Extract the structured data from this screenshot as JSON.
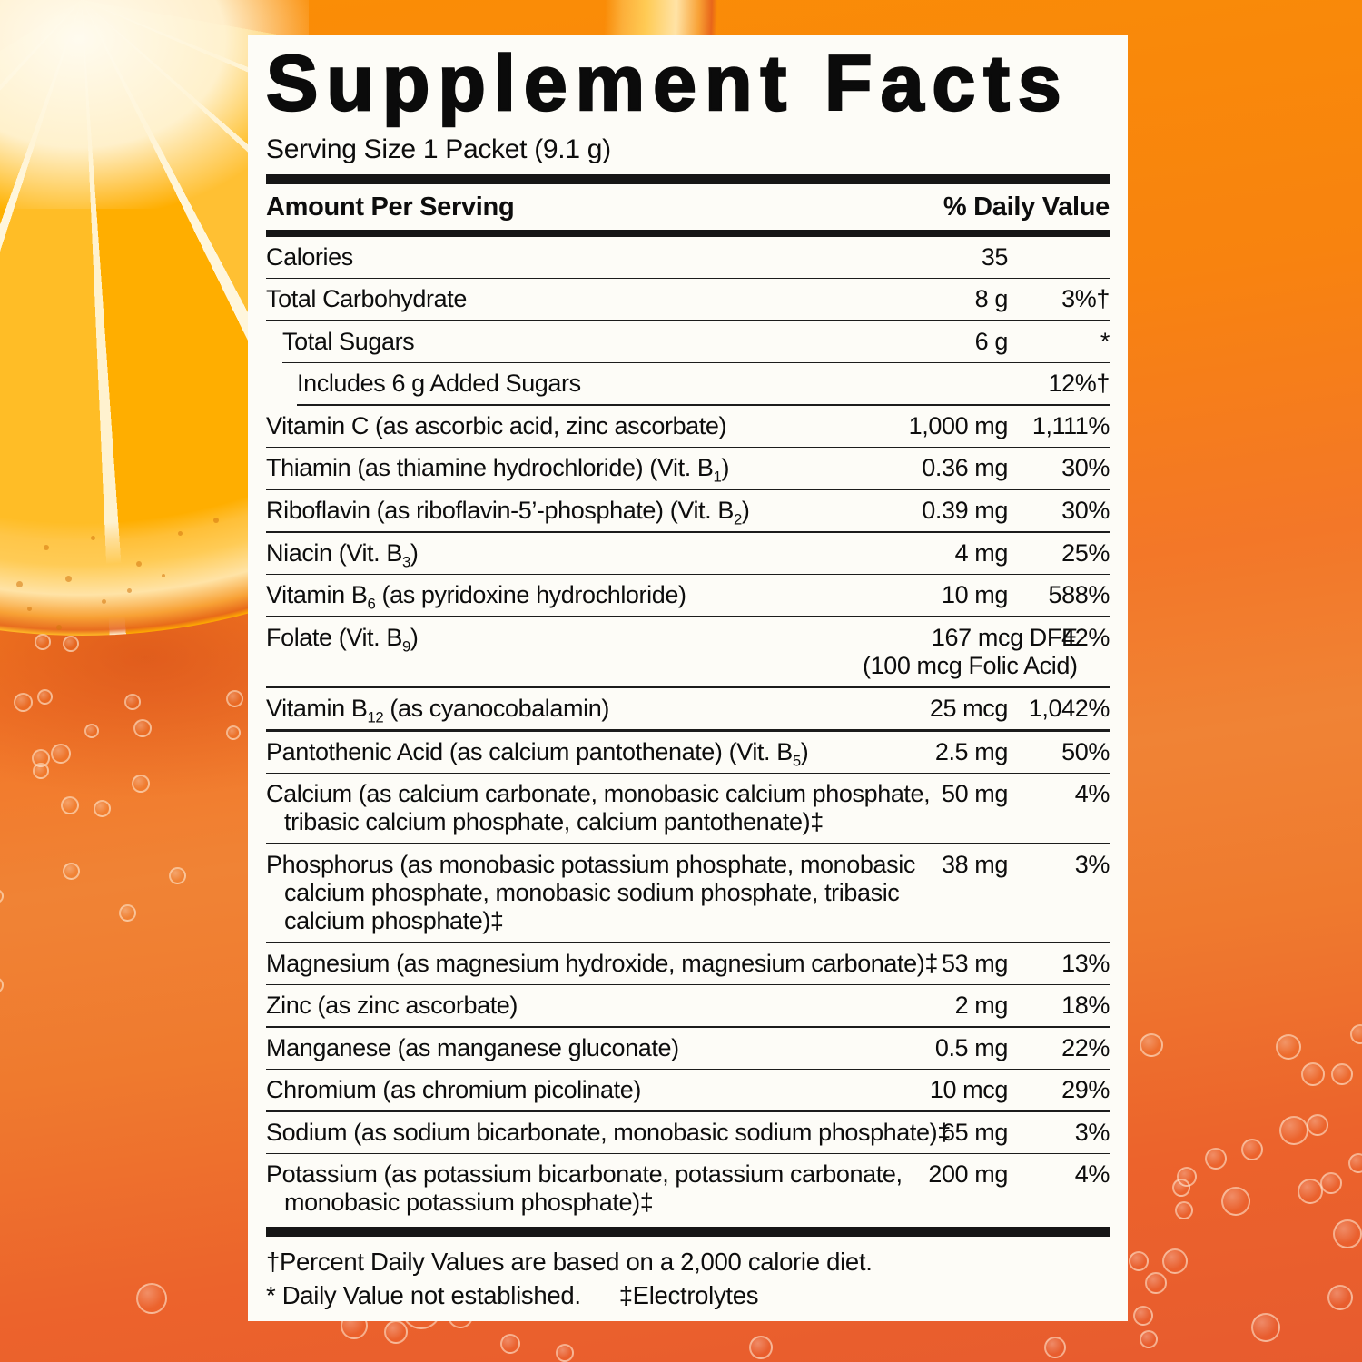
{
  "label": {
    "title": "Supplement Facts",
    "serving_size": "Serving Size 1 Packet (9.1 g)",
    "columns": {
      "amount": "Amount Per Serving",
      "dv": "% Daily Value"
    },
    "rows": [
      {
        "name": [
          {
            "t": "Calories"
          }
        ],
        "indent": 0,
        "amount": [
          "35"
        ],
        "dv": ""
      },
      {
        "name": [
          {
            "t": "Total Carbohydrate"
          }
        ],
        "indent": 0,
        "amount": [
          "8 g"
        ],
        "dv": "3%†"
      },
      {
        "name": [
          {
            "t": "Total Sugars"
          }
        ],
        "indent": 1,
        "amount": [
          "6 g"
        ],
        "dv": "*"
      },
      {
        "name": [
          {
            "t": "Includes 6 g Added Sugars"
          }
        ],
        "indent": 2,
        "amount": [],
        "dv": "12%†"
      },
      {
        "name": [
          {
            "t": "Vitamin C (as ascorbic acid, zinc ascorbate)"
          }
        ],
        "indent": 0,
        "amount": [
          "1,000 mg"
        ],
        "dv": "1,111%"
      },
      {
        "name": [
          {
            "t": "Thiamin (as thiamine hydrochloride) (Vit. B"
          },
          {
            "s": "1"
          },
          {
            "t": ")"
          }
        ],
        "indent": 0,
        "amount": [
          "0.36 mg"
        ],
        "dv": "30%"
      },
      {
        "name": [
          {
            "t": "Riboflavin (as riboflavin-5’-phosphate) (Vit. B"
          },
          {
            "s": "2"
          },
          {
            "t": ")"
          }
        ],
        "indent": 0,
        "amount": [
          "0.39 mg"
        ],
        "dv": "30%"
      },
      {
        "name": [
          {
            "t": "Niacin (Vit. B"
          },
          {
            "s": "3"
          },
          {
            "t": ")"
          }
        ],
        "indent": 0,
        "amount": [
          "4 mg"
        ],
        "dv": "25%"
      },
      {
        "name": [
          {
            "t": "Vitamin B"
          },
          {
            "s": "6"
          },
          {
            "t": " (as pyridoxine hydrochloride)"
          }
        ],
        "indent": 0,
        "amount": [
          "10 mg"
        ],
        "dv": "588%"
      },
      {
        "name": [
          {
            "t": "Folate (Vit. B"
          },
          {
            "s": "9"
          },
          {
            "t": ")"
          }
        ],
        "indent": 0,
        "amount": [
          "167 mcg DFE",
          "(100 mcg Folic Acid)"
        ],
        "dv": "42%",
        "sep": "medium"
      },
      {
        "name": [
          {
            "t": "Vitamin B"
          },
          {
            "s": "12"
          },
          {
            "t": " (as cyanocobalamin)"
          }
        ],
        "indent": 0,
        "amount": [
          "25 mcg"
        ],
        "dv": "1,042%",
        "sep": "medium"
      },
      {
        "name": [
          {
            "t": "Pantothenic Acid (as calcium pantothenate) (Vit. B"
          },
          {
            "s": "5"
          },
          {
            "t": ")"
          }
        ],
        "indent": 0,
        "amount": [
          "2.5 mg"
        ],
        "dv": "50%"
      },
      {
        "name": [
          {
            "t": "Calcium (as calcium carbonate, monobasic calcium phosphate,"
          },
          {
            "br": true
          },
          {
            "t": "tribasic calcium phosphate, calcium pantothenate)‡"
          }
        ],
        "indent": 0,
        "amount": [
          "50 mg"
        ],
        "dv": "4%"
      },
      {
        "name": [
          {
            "t": "Phosphorus (as monobasic potassium phosphate, monobasic"
          },
          {
            "br": true
          },
          {
            "t": "calcium phosphate, monobasic sodium phosphate, tribasic"
          },
          {
            "br": true
          },
          {
            "t": "calcium phosphate)‡"
          }
        ],
        "indent": 0,
        "amount": [
          "38 mg"
        ],
        "dv": "3%"
      },
      {
        "name": [
          {
            "t": "Magnesium (as magnesium hydroxide, magnesium carbonate)‡"
          }
        ],
        "indent": 0,
        "amount": [
          "53 mg"
        ],
        "dv": "13%"
      },
      {
        "name": [
          {
            "t": "Zinc (as zinc ascorbate)"
          }
        ],
        "indent": 0,
        "amount": [
          "2 mg"
        ],
        "dv": "18%"
      },
      {
        "name": [
          {
            "t": "Manganese (as manganese gluconate)"
          }
        ],
        "indent": 0,
        "amount": [
          "0.5 mg"
        ],
        "dv": "22%"
      },
      {
        "name": [
          {
            "t": "Chromium (as chromium picolinate)"
          }
        ],
        "indent": 0,
        "amount": [
          "10 mcg"
        ],
        "dv": "29%"
      },
      {
        "name": [
          {
            "t": "Sodium (as sodium bicarbonate, monobasic sodium phosphate)‡"
          }
        ],
        "indent": 0,
        "amount": [
          "65 mg"
        ],
        "dv": "3%"
      },
      {
        "name": [
          {
            "t": "Potassium (as potassium bicarbonate, potassium carbonate,"
          },
          {
            "br": true
          },
          {
            "t": "monobasic potassium phosphate)‡"
          }
        ],
        "indent": 0,
        "amount": [
          "200 mg"
        ],
        "dv": "4%"
      }
    ],
    "footnotes": {
      "daily_value": "†Percent Daily Values are based on a 2,000 calorie diet.",
      "not_established": "* Daily Value not established.",
      "electrolytes": "‡Electrolytes"
    }
  },
  "colors": {
    "background_top": "#FA8E05",
    "background_bottom": "#E75B2E",
    "panel": "#FDFCF7",
    "text": "#0D0D0D",
    "slice_orange": "#FFB200",
    "bubble_ring": "rgba(255,240,220,0.55)"
  }
}
